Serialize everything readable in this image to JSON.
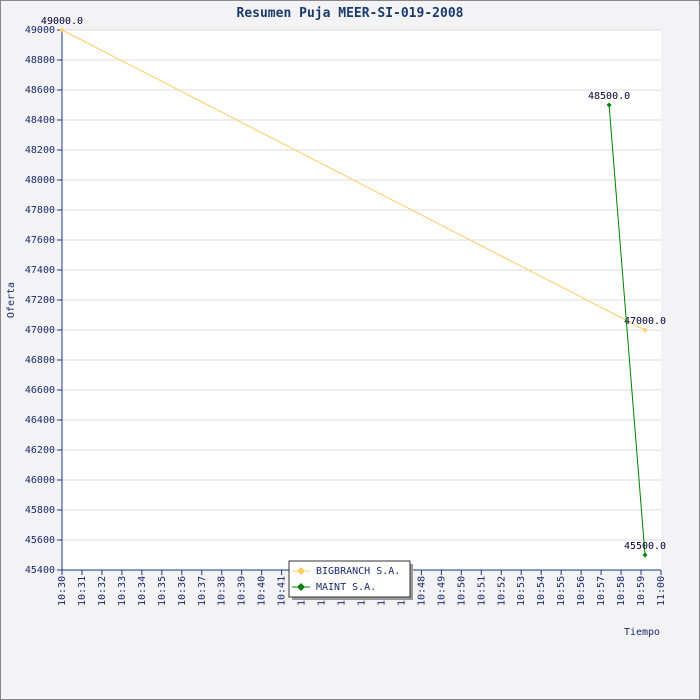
{
  "chart_data": {
    "type": "line",
    "title": "Resumen Puja MEER-SI-019-2008",
    "x_label": "Tiempo",
    "y_label": "Oferta",
    "xlim": [
      "10:30",
      "11:00"
    ],
    "xticks": [
      "10:30",
      "10:31",
      "10:32",
      "10:33",
      "10:34",
      "10:35",
      "10:36",
      "10:37",
      "10:38",
      "10:39",
      "10:40",
      "10:41",
      "10:42",
      "10:43",
      "10:44",
      "10:45",
      "10:46",
      "10:47",
      "10:48",
      "10:49",
      "10:50",
      "10:51",
      "10:52",
      "10:53",
      "10:54",
      "10:55",
      "10:56",
      "10:57",
      "10:58",
      "10:59",
      "11:00"
    ],
    "ylim": [
      45400,
      49000
    ],
    "yticks": [
      45400,
      45600,
      45800,
      46000,
      46200,
      46400,
      46600,
      46800,
      47000,
      47200,
      47400,
      47600,
      47800,
      48000,
      48200,
      48400,
      48600,
      48800,
      49000
    ],
    "grid": true,
    "legend": "bottom",
    "series": [
      {
        "name": "BIGBRANCH S.A.",
        "color": "#ffcc66",
        "x": [
          "10:30:00",
          "10:59:12"
        ],
        "values": [
          49000,
          47000
        ],
        "value_labels": [
          "49000.0",
          "47000.0"
        ]
      },
      {
        "name": "MAINT S.A.",
        "color": "#008000",
        "x": [
          "10:57:24",
          "10:59:12"
        ],
        "values": [
          48500,
          45500
        ],
        "value_labels": [
          "48500.0",
          "45500.0"
        ]
      }
    ]
  }
}
